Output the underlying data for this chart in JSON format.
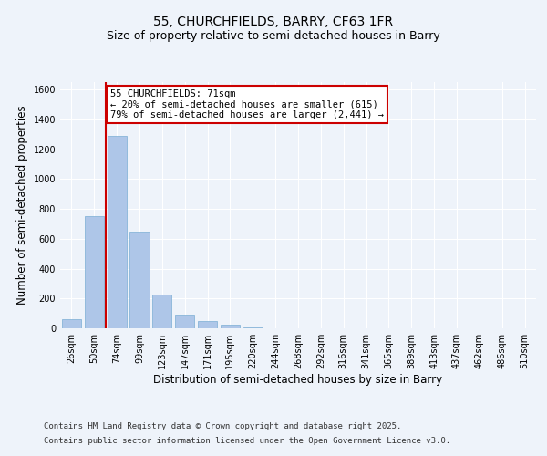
{
  "title_line1": "55, CHURCHFIELDS, BARRY, CF63 1FR",
  "title_line2": "Size of property relative to semi-detached houses in Barry",
  "xlabel": "Distribution of semi-detached houses by size in Barry",
  "ylabel": "Number of semi-detached properties",
  "categories": [
    "26sqm",
    "50sqm",
    "74sqm",
    "99sqm",
    "123sqm",
    "147sqm",
    "171sqm",
    "195sqm",
    "220sqm",
    "244sqm",
    "268sqm",
    "292sqm",
    "316sqm",
    "341sqm",
    "365sqm",
    "389sqm",
    "413sqm",
    "437sqm",
    "462sqm",
    "486sqm",
    "510sqm"
  ],
  "values": [
    60,
    750,
    1290,
    650,
    225,
    90,
    50,
    25,
    5,
    2,
    1,
    0,
    0,
    0,
    0,
    0,
    0,
    0,
    0,
    0,
    0
  ],
  "bar_color": "#aec6e8",
  "bar_edge_color": "#7aaed4",
  "vline_index": 2,
  "vline_color": "#cc0000",
  "annotation_text": "55 CHURCHFIELDS: 71sqm\n← 20% of semi-detached houses are smaller (615)\n79% of semi-detached houses are larger (2,441) →",
  "annotation_box_color": "#ffffff",
  "annotation_box_edge": "#cc0000",
  "ylim": [
    0,
    1650
  ],
  "yticks": [
    0,
    200,
    400,
    600,
    800,
    1000,
    1200,
    1400,
    1600
  ],
  "footer_line1": "Contains HM Land Registry data © Crown copyright and database right 2025.",
  "footer_line2": "Contains public sector information licensed under the Open Government Licence v3.0.",
  "bg_color": "#eef3fa",
  "plot_bg_color": "#eef3fa",
  "grid_color": "#ffffff",
  "title_fontsize": 10,
  "subtitle_fontsize": 9,
  "axis_label_fontsize": 8.5,
  "tick_fontsize": 7,
  "annotation_fontsize": 7.5,
  "footer_fontsize": 6.5
}
